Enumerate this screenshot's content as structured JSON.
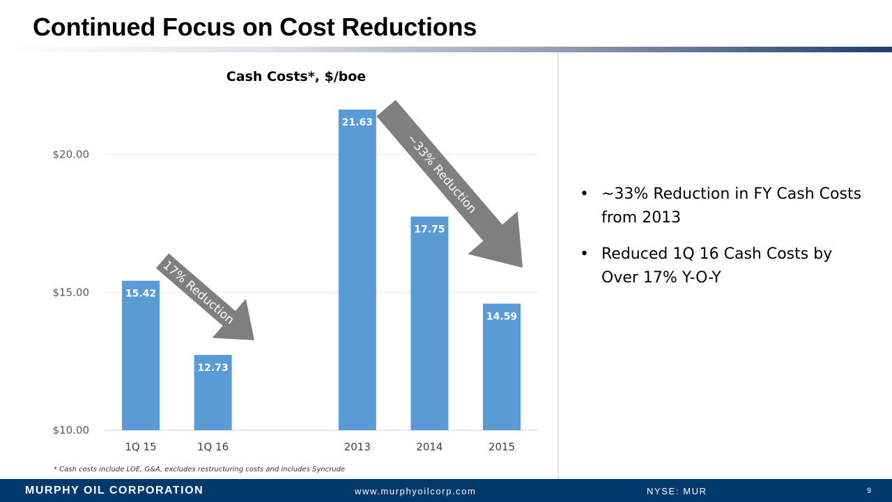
{
  "slide": {
    "title": "Continued Focus on Cost Reductions",
    "footnote": "* Cash costs include LOE, G&A, excludes restructuring costs and includes Syncrude"
  },
  "bullets": [
    {
      "marker": "•",
      "text": "~33% Reduction in FY Cash Costs from 2013"
    },
    {
      "marker": "•",
      "text": "Reduced 1Q 16 Cash Costs by Over 17% Y-O-Y"
    }
  ],
  "footer": {
    "company": "MURPHY OIL CORPORATION",
    "url": "www.murphyoilcorp.com",
    "ticker": "NYSE: MUR",
    "page": "9"
  },
  "colors": {
    "bar": "#5b9bd5",
    "arrow": "#7f7f7f",
    "footer": "#003a6c"
  },
  "chart_data": {
    "type": "bar",
    "title": "Cash Costs*, $/boe",
    "categories": [
      "1Q 15",
      "1Q 16",
      "",
      "2013",
      "2014",
      "2015"
    ],
    "values": [
      15.42,
      12.73,
      null,
      21.63,
      17.75,
      14.59
    ],
    "data_labels": [
      "15.42",
      "12.73",
      "",
      "21.63",
      "17.75",
      "14.59"
    ],
    "ylim": [
      10,
      22
    ],
    "yticks": [
      10,
      15,
      20
    ],
    "ytick_labels": [
      "$10.00",
      "$15.00",
      "$20.00"
    ],
    "grid": true,
    "legend": "none",
    "annotations": [
      {
        "text": "17% Reduction",
        "from_category": "1Q 15",
        "to_category": "1Q 16"
      },
      {
        "text": "~33% Reduction",
        "from_category": "2013",
        "to_category": "2015"
      }
    ]
  }
}
